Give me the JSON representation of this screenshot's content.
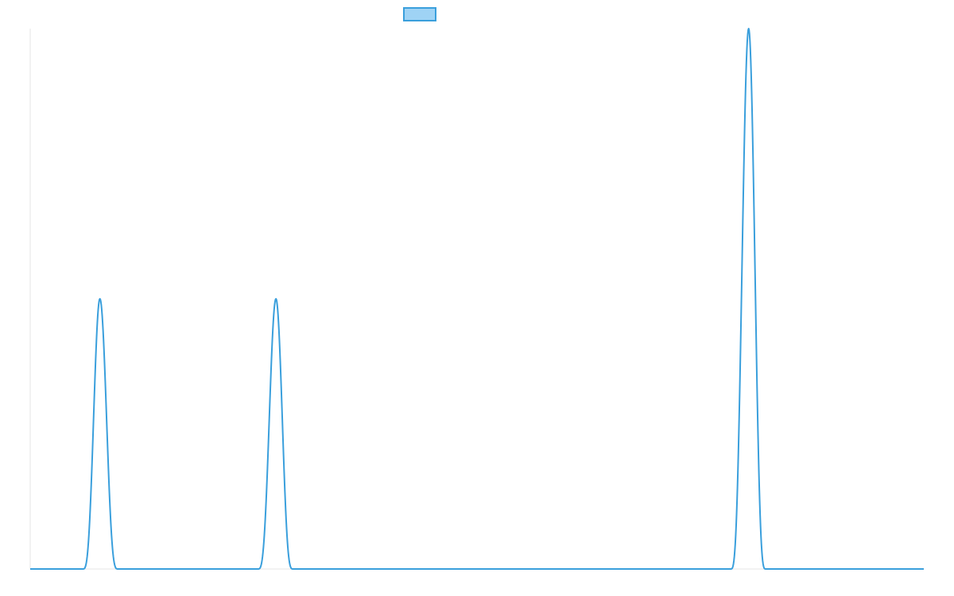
{
  "chart_data": {
    "type": "line",
    "title": "",
    "xlabel": "",
    "ylabel": "",
    "legend": {
      "placement": "top-center",
      "entries": [
        {
          "name": "",
          "fill": "#9fd3f5",
          "stroke": "#3a9fdc"
        }
      ]
    },
    "grid": false,
    "xlim": [
      0,
      100
    ],
    "ylim": [
      0,
      1
    ],
    "series": [
      {
        "name": "",
        "color": "#3a9fdc",
        "points": [
          [
            0,
            0
          ],
          [
            5.9,
            0
          ],
          [
            7.8,
            0.5
          ],
          [
            9.8,
            0
          ],
          [
            25.5,
            0
          ],
          [
            27.5,
            0.5
          ],
          [
            29.4,
            0
          ],
          [
            78.4,
            0
          ],
          [
            80.4,
            1.0
          ],
          [
            82.3,
            0
          ],
          [
            100,
            0
          ]
        ]
      }
    ]
  }
}
